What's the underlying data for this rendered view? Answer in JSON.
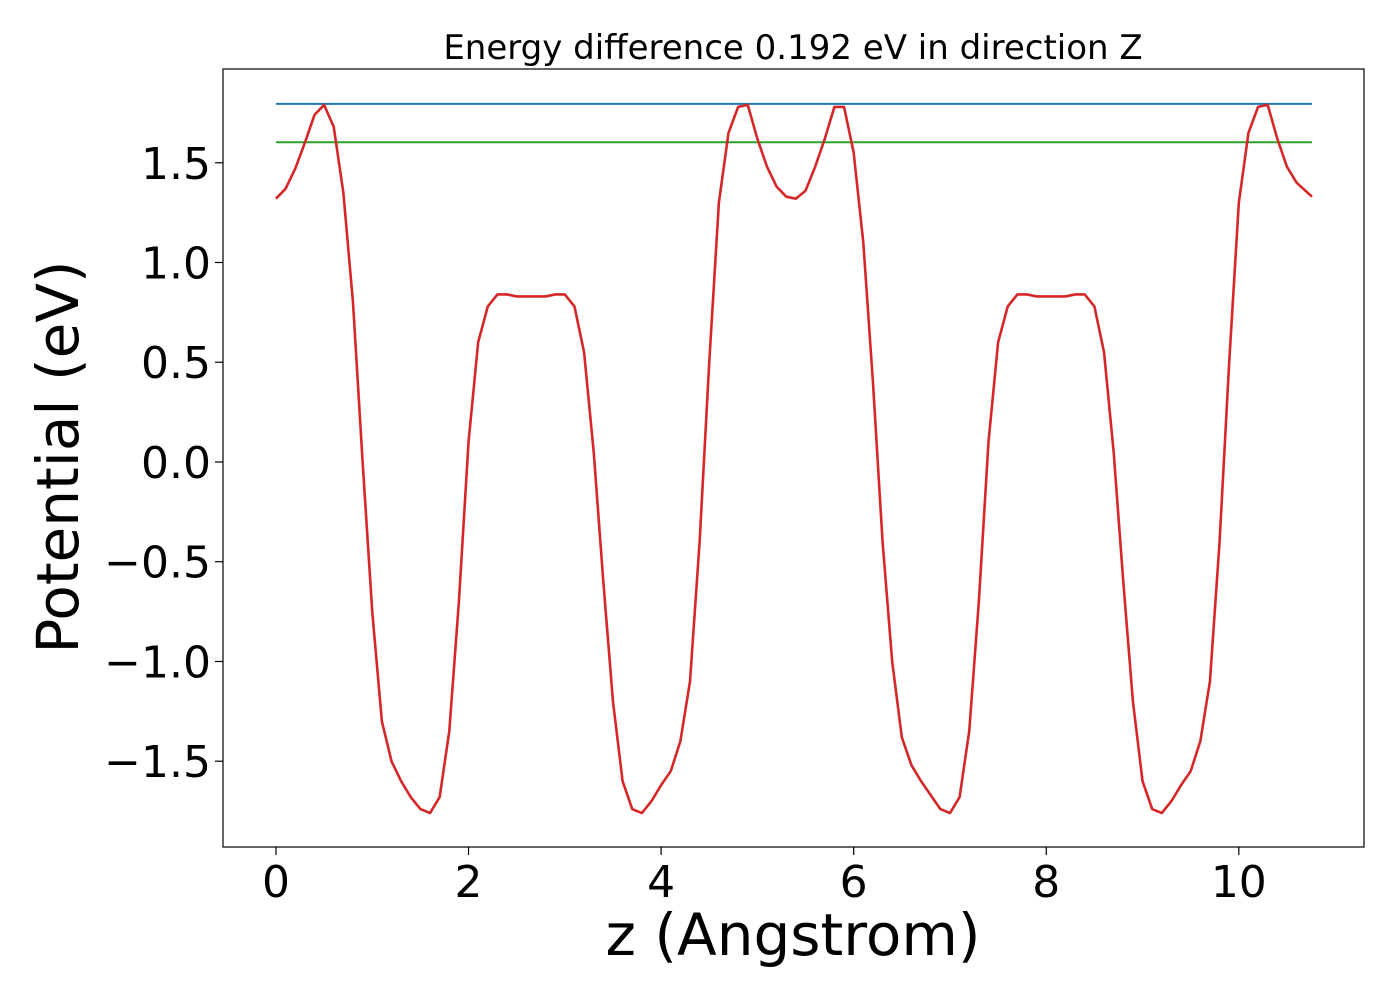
{
  "chart_data": {
    "type": "line",
    "title": "Energy difference 0.192 eV in direction Z",
    "xlabel": "z (Angstrom)",
    "ylabel": "Potential (eV)",
    "xlim": [
      -0.55,
      11.3
    ],
    "ylim": [
      -1.93,
      1.97
    ],
    "grid": false,
    "x_ticks": [
      0,
      2,
      4,
      6,
      8,
      10
    ],
    "x_tick_labels": [
      "0",
      "2",
      "4",
      "6",
      "8",
      "10"
    ],
    "y_ticks": [
      1.5,
      1.0,
      0.5,
      0.0,
      -0.5,
      -1.0,
      -1.5
    ],
    "y_tick_labels": [
      "1.5",
      "1.0",
      "0.5",
      "0.0",
      "−0.5",
      "−1.0",
      "−1.5"
    ],
    "series": [
      {
        "color": "#1f77b4",
        "x": [
          0,
          10.76
        ],
        "y": [
          1.795,
          1.795
        ]
      },
      {
        "color": "#2ca02c",
        "x": [
          0,
          10.76
        ],
        "y": [
          1.603,
          1.603
        ]
      },
      {
        "color": "#d62728",
        "x": [
          0,
          0.1,
          0.2,
          0.3,
          0.4,
          0.5,
          0.6,
          0.7,
          0.8,
          0.9,
          1.0,
          1.1,
          1.2,
          1.3,
          1.4,
          1.5,
          1.6,
          1.7,
          1.8,
          1.9,
          2.0,
          2.1,
          2.2,
          2.3,
          2.4,
          2.5,
          2.6,
          2.7,
          2.8,
          2.9,
          3.0,
          3.1,
          3.2,
          3.3,
          3.4,
          3.5,
          3.6,
          3.7,
          3.8,
          3.9,
          4.0,
          4.1,
          4.2,
          4.3,
          4.4,
          4.5,
          4.6,
          4.7,
          4.8,
          4.9,
          5.0,
          5.1,
          5.2,
          5.3,
          5.4,
          5.5,
          5.6,
          5.7,
          5.8,
          5.9,
          6.0,
          6.1,
          6.2,
          6.3,
          6.4,
          6.5,
          6.6,
          6.7,
          6.8,
          6.9,
          7.0,
          7.1,
          7.2,
          7.3,
          7.4,
          7.5,
          7.6,
          7.7,
          7.8,
          7.9,
          8.0,
          8.1,
          8.2,
          8.3,
          8.4,
          8.5,
          8.6,
          8.7,
          8.8,
          8.9,
          9.0,
          9.1,
          9.2,
          9.3,
          9.4,
          9.5,
          9.6,
          9.7,
          9.8,
          9.9,
          10.0,
          10.1,
          10.2,
          10.3,
          10.4,
          10.5,
          10.6,
          10.76
        ],
        "y": [
          1.32,
          1.37,
          1.47,
          1.6,
          1.74,
          1.79,
          1.68,
          1.35,
          0.8,
          0.0,
          -0.75,
          -1.3,
          -1.5,
          -1.6,
          -1.68,
          -1.74,
          -1.76,
          -1.68,
          -1.35,
          -0.7,
          0.1,
          0.6,
          0.78,
          0.84,
          0.84,
          0.83,
          0.83,
          0.83,
          0.83,
          0.84,
          0.84,
          0.78,
          0.55,
          0.05,
          -0.6,
          -1.2,
          -1.6,
          -1.74,
          -1.76,
          -1.7,
          -1.62,
          -1.55,
          -1.4,
          -1.1,
          -0.4,
          0.5,
          1.3,
          1.65,
          1.78,
          1.79,
          1.62,
          1.48,
          1.38,
          1.33,
          1.32,
          1.36,
          1.48,
          1.62,
          1.78,
          1.78,
          1.55,
          1.1,
          0.4,
          -0.4,
          -1.0,
          -1.38,
          -1.52,
          -1.6,
          -1.67,
          -1.74,
          -1.76,
          -1.68,
          -1.35,
          -0.7,
          0.1,
          0.6,
          0.78,
          0.84,
          0.84,
          0.83,
          0.83,
          0.83,
          0.83,
          0.84,
          0.84,
          0.78,
          0.55,
          0.05,
          -0.6,
          -1.2,
          -1.6,
          -1.74,
          -1.76,
          -1.7,
          -1.62,
          -1.55,
          -1.4,
          -1.1,
          -0.4,
          0.5,
          1.3,
          1.65,
          1.78,
          1.79,
          1.62,
          1.48,
          1.4,
          1.33
        ]
      }
    ]
  }
}
